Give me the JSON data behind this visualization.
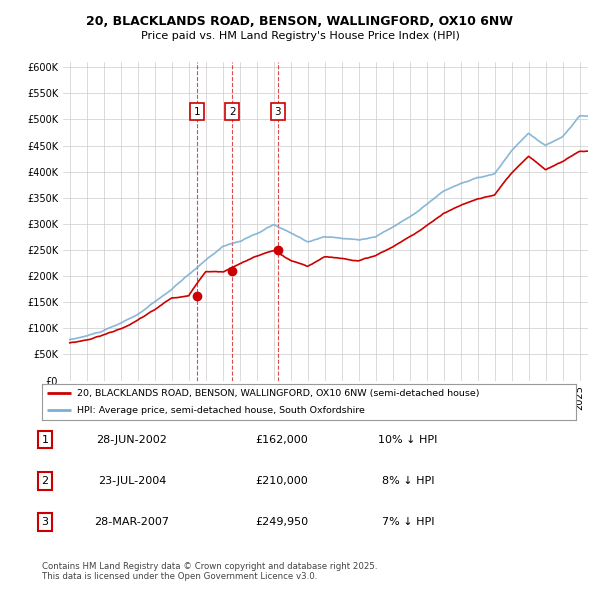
{
  "title": "20, BLACKLANDS ROAD, BENSON, WALLINGFORD, OX10 6NW",
  "subtitle": "Price paid vs. HM Land Registry's House Price Index (HPI)",
  "legend_line1": "20, BLACKLANDS ROAD, BENSON, WALLINGFORD, OX10 6NW (semi-detached house)",
  "legend_line2": "HPI: Average price, semi-detached house, South Oxfordshire",
  "footnote": "Contains HM Land Registry data © Crown copyright and database right 2025.\nThis data is licensed under the Open Government Licence v3.0.",
  "sales": [
    {
      "num": 1,
      "date": "28-JUN-2002",
      "price": "£162,000",
      "hpi": "10% ↓ HPI",
      "year": 2002.49,
      "price_val": 162000
    },
    {
      "num": 2,
      "date": "23-JUL-2004",
      "price": "£210,000",
      "hpi": "8% ↓ HPI",
      "year": 2004.56,
      "price_val": 210000
    },
    {
      "num": 3,
      "date": "28-MAR-2007",
      "price": "£249,950",
      "hpi": "7% ↓ HPI",
      "year": 2007.24,
      "price_val": 249950
    }
  ],
  "ylim": [
    0,
    610000
  ],
  "yticks": [
    0,
    50000,
    100000,
    150000,
    200000,
    250000,
    300000,
    350000,
    400000,
    450000,
    500000,
    550000,
    600000
  ],
  "xlim_start": 1994.6,
  "xlim_end": 2025.5,
  "red_color": "#cc0000",
  "blue_color": "#7bafd4",
  "blue_fill": "#ddeeff",
  "sale_marker_color": "#cc0000",
  "grid_color": "#cccccc",
  "bg_color": "#ffffff",
  "hpi_years": [
    1995,
    1996,
    1997,
    1998,
    1999,
    2000,
    2001,
    2002,
    2003,
    2004,
    2005,
    2006,
    2007,
    2008,
    2009,
    2010,
    2011,
    2012,
    2013,
    2014,
    2015,
    2016,
    2017,
    2018,
    2019,
    2020,
    2021,
    2022,
    2023,
    2024,
    2025
  ],
  "hpi_vals": [
    78000,
    85000,
    95000,
    108000,
    125000,
    148000,
    172000,
    200000,
    228000,
    255000,
    265000,
    278000,
    295000,
    278000,
    262000,
    272000,
    268000,
    265000,
    272000,
    290000,
    310000,
    335000,
    360000,
    375000,
    385000,
    392000,
    435000,
    468000,
    445000,
    460000,
    500000
  ],
  "paid_years": [
    1995,
    1996,
    1997,
    1998,
    1999,
    2000,
    2001,
    2002,
    2003,
    2004,
    2005,
    2006,
    2007,
    2008,
    2009,
    2010,
    2011,
    2012,
    2013,
    2014,
    2015,
    2016,
    2017,
    2018,
    2019,
    2020,
    2021,
    2022,
    2023,
    2024,
    2025
  ],
  "paid_vals": [
    72000,
    78000,
    88000,
    100000,
    116000,
    136000,
    158000,
    162000,
    210000,
    210000,
    225000,
    240000,
    249950,
    230000,
    218000,
    235000,
    232000,
    228000,
    238000,
    255000,
    275000,
    295000,
    320000,
    335000,
    348000,
    355000,
    395000,
    425000,
    400000,
    415000,
    435000
  ]
}
